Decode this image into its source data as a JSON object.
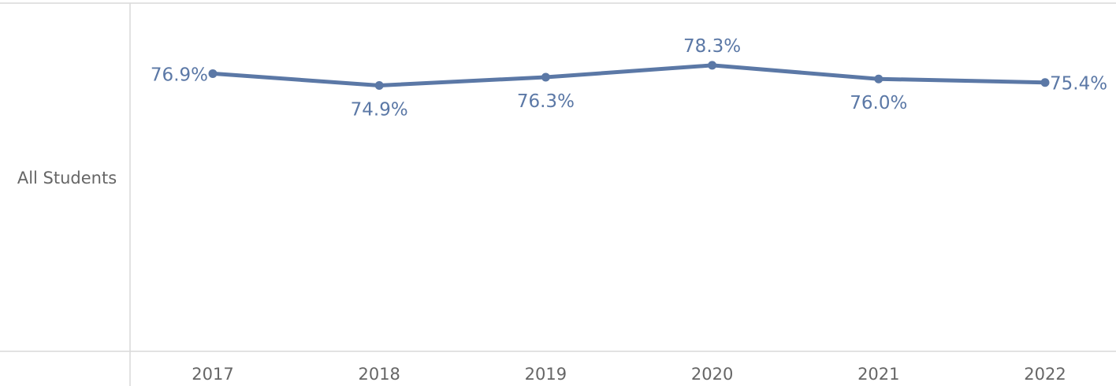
{
  "chart_data": {
    "type": "line",
    "row_label": "All Students",
    "categories": [
      "2017",
      "2018",
      "2019",
      "2020",
      "2021",
      "2022"
    ],
    "series": [
      {
        "values": [
          76.9,
          74.9,
          76.3,
          78.3,
          76.0,
          75.4
        ],
        "labels": [
          "76.9%",
          "74.9%",
          "76.3%",
          "78.3%",
          "76.0%",
          "75.4%"
        ]
      }
    ],
    "ylim": [
      30,
      88
    ],
    "label_positions": [
      "left",
      "below",
      "below",
      "above",
      "below",
      "right"
    ],
    "line_color": "#5b78a6",
    "grid": false,
    "legend": "none"
  }
}
